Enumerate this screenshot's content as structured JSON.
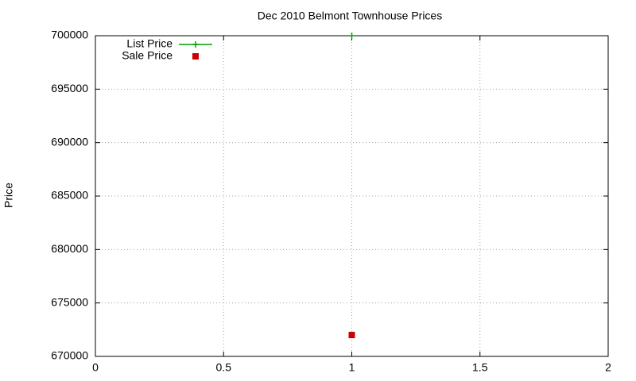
{
  "chart_data": {
    "type": "scatter",
    "title": "Dec 2010 Belmont Townhouse Prices",
    "y_label": "Price",
    "x": [
      1
    ],
    "series": [
      {
        "name": "List Price",
        "color": "#00a000",
        "marker": "plus",
        "line": true,
        "values": [
          700000
        ]
      },
      {
        "name": "Sale Price",
        "color": "#cc0000",
        "marker": "square",
        "line": false,
        "values": [
          672000
        ]
      }
    ],
    "xlim": [
      0,
      2
    ],
    "xticks": [
      0,
      0.5,
      1,
      1.5,
      2
    ],
    "ylim": [
      670000,
      700000
    ],
    "yticks": [
      670000,
      675000,
      680000,
      685000,
      690000,
      695000,
      700000
    ],
    "grid": true,
    "legend": "top left"
  }
}
